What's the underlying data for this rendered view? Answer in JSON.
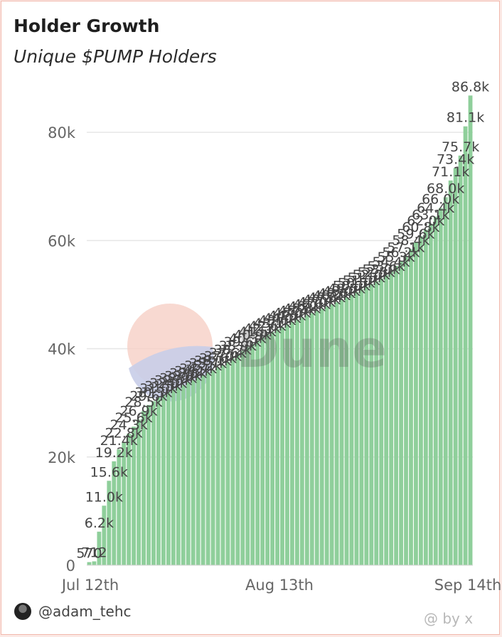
{
  "header": {
    "title": "Holder Growth",
    "subtitle": "Unique $PUMP Holders"
  },
  "footer": {
    "author": "@adam_tehc",
    "credit": "@ by x"
  },
  "watermark": {
    "text": "Dune"
  },
  "colors": {
    "bar": "#8fcf9b",
    "grid": "#e6e6e6",
    "axis": "#666666",
    "label": "#444444"
  },
  "chart_data": {
    "type": "bar",
    "x_ticks": [
      "Jul 12th",
      "Aug 13th",
      "Sep 14th"
    ],
    "y_ticks": [
      "0",
      "20k",
      "40k",
      "60k",
      "80k"
    ],
    "ylim": [
      0,
      90000
    ],
    "grid": true,
    "series": [
      {
        "values": [
          570,
          712,
          6200,
          11000,
          15600,
          19200,
          21400,
          22800,
          24300,
          25600,
          26900,
          28500,
          29600,
          30300,
          31000,
          31500,
          32000,
          32500,
          32900,
          33300,
          33800,
          34200,
          34700,
          35200,
          35700,
          36100,
          36600,
          37000,
          37600,
          38200,
          38900,
          39600,
          40300,
          40900,
          41500,
          42100,
          42600,
          43100,
          43600,
          44000,
          44500,
          45000,
          45400,
          45800,
          46200,
          46600,
          47000,
          47400,
          47800,
          48200,
          48600,
          49000,
          49500,
          50000,
          50500,
          51000,
          51500,
          52000,
          52500,
          53000,
          53600,
          54400,
          55300,
          56200,
          57100,
          58400,
          59600,
          60800,
          62000,
          63100,
          64400,
          66000,
          68000,
          71100,
          73400,
          75700,
          81100,
          86800
        ],
        "labels": [
          "570",
          "712",
          "6.2k",
          "11.0k",
          "15.6k",
          "19.2k",
          "21.4k",
          "22.8k",
          "24.3k",
          "25.6k",
          "26.9k",
          "28.5k",
          "29.6k",
          "30.3k",
          "31.0k",
          "31.5k",
          "32.0k",
          "32.5k",
          "32.9k",
          "33.3k",
          "33.8k",
          "34.2k",
          "34.7k",
          "35.2k",
          "35.7k",
          "36.1k",
          "36.6k",
          "37.0k",
          "37.6k",
          "38.2k",
          "38.9k",
          "39.6k",
          "40.3k",
          "40.9k",
          "41.5k",
          "42.1k",
          "42.6k",
          "43.1k",
          "43.6k",
          "44.0k",
          "44.5k",
          "45.0k",
          "45.4k",
          "45.8k",
          "46.2k",
          "46.6k",
          "47.0k",
          "47.4k",
          "47.8k",
          "48.2k",
          "48.6k",
          "49.0k",
          "49.5k",
          "50.0k",
          "50.5k",
          "51.0k",
          "51.5k",
          "52.0k",
          "52.5k",
          "53.0k",
          "53.6k",
          "54.4k",
          "55.3k",
          "56.2k",
          "57.1k",
          "58.4k",
          "59.6k",
          "60.8k",
          "62.0k",
          "63.1k",
          "64.4k",
          "66.0k",
          "68.0k",
          "71.1k",
          "73.4k",
          "75.7k",
          "81.1k",
          "86.8k"
        ]
      }
    ]
  }
}
